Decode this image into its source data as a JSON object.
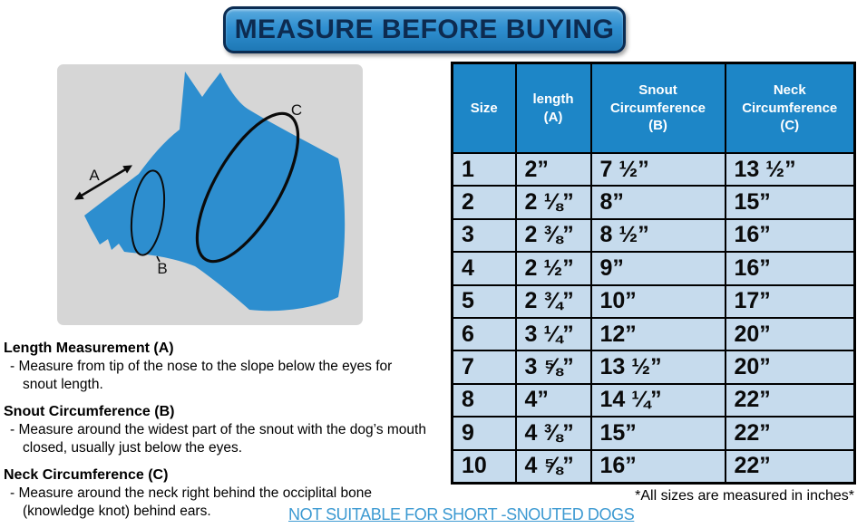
{
  "banner": {
    "title": "MEASURE BEFORE BUYING"
  },
  "diagram": {
    "labels": {
      "a": "A",
      "b": "B",
      "c": "C"
    }
  },
  "table": {
    "headers": [
      "Size",
      "length\n(A)",
      "Snout\nCircumference\n(B)",
      "Neck\nCircumference\n(C)"
    ],
    "rows": [
      [
        "1",
        "2”",
        "7 ½”",
        "13 ½”"
      ],
      [
        "2",
        "2 ⅛”",
        "8”",
        "15”"
      ],
      [
        "3",
        "2 ⅜”",
        "8 ½”",
        "16”"
      ],
      [
        "4",
        "2 ½”",
        "9”",
        "16”"
      ],
      [
        "5",
        "2 ¾”",
        "10”",
        "17”"
      ],
      [
        "6",
        "3 ¼”",
        "12”",
        "20”"
      ],
      [
        "7",
        "3 ⅝”",
        "13 ½”",
        "20”"
      ],
      [
        "8",
        "4”",
        "14 ¼”",
        "22”"
      ],
      [
        "9",
        "4 ⅜”",
        "15”",
        "22”"
      ],
      [
        "10",
        "4 ⅝”",
        "16”",
        "22”"
      ]
    ]
  },
  "instructions": {
    "sections": [
      {
        "heading": "Length Measurement (A)",
        "body": "- Measure from tip of the nose to the slope below the eyes for\nsnout length."
      },
      {
        "heading": "Snout Circumference (B)",
        "body": "- Measure around the widest part of the snout with the dog’s mouth\nclosed, usually just below the eyes."
      },
      {
        "heading": "Neck Circumference (C)",
        "body": "- Measure around the neck right behind the occiplital bone\n(knowledge knot) behind ears."
      }
    ]
  },
  "footnote": "*All sizes are measured in inches*",
  "warning_link": {
    "label": "NOT SUITABLE FOR SHORT -SNOUTED DOGS"
  },
  "colors": {
    "primary_blue": "#2d8ecf",
    "header_blue": "#1d86c7",
    "row_blue": "#c6dbed",
    "link_blue": "#3d9ad2",
    "banner_text_navy": "#0d2b50",
    "panel_gray": "#d6d6d6"
  },
  "chart_data": {
    "type": "table",
    "title": "MEASURE BEFORE BUYING",
    "columns": [
      "Size",
      "length (A)",
      "Snout Circumference (B)",
      "Neck Circumference (C)"
    ],
    "rows": [
      [
        "1",
        "2",
        "7 1/2",
        "13 1/2"
      ],
      [
        "2",
        "2 1/8",
        "8",
        "15"
      ],
      [
        "3",
        "2 3/8",
        "8 1/2",
        "16"
      ],
      [
        "4",
        "2 1/2",
        "9",
        "16"
      ],
      [
        "5",
        "2 3/4",
        "10",
        "17"
      ],
      [
        "6",
        "3 1/4",
        "12",
        "20"
      ],
      [
        "7",
        "3 5/8",
        "13 1/2",
        "20"
      ],
      [
        "8",
        "4",
        "14 1/4",
        "22"
      ],
      [
        "9",
        "4 3/8",
        "15",
        "22"
      ],
      [
        "10",
        "4 5/8",
        "16",
        "22"
      ]
    ],
    "units": "inches",
    "note": "*All sizes are measured in inches*"
  }
}
